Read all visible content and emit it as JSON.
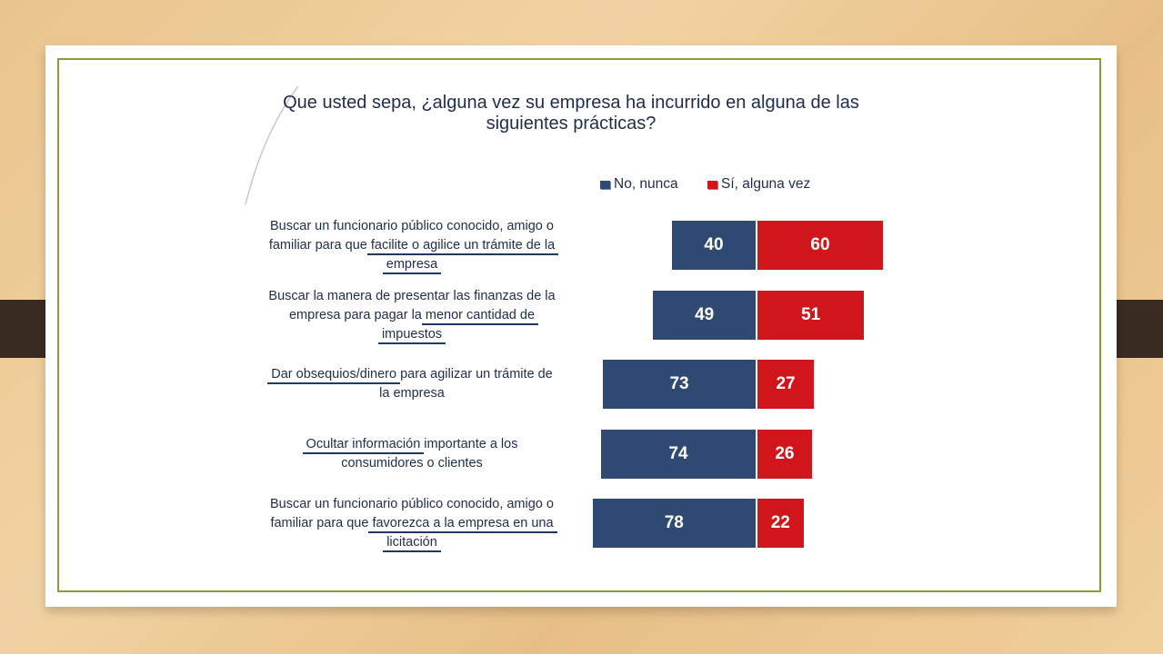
{
  "chart_data": {
    "type": "bar",
    "orientation": "horizontal",
    "stacked": true,
    "title": [
      "Que usted sepa, ¿alguna vez su empresa ha incurrido en alguna de las",
      "siguientes prácticas?"
    ],
    "legend_position": "top-right",
    "series": [
      {
        "name": "No, nunca",
        "color": "#2e4a73",
        "values": [
          40,
          49,
          73,
          74,
          78
        ]
      },
      {
        "name": "Sí, alguna vez",
        "color": "#d0161b",
        "values": [
          60,
          51,
          27,
          26,
          22
        ]
      }
    ],
    "categories": [
      {
        "lines": [
          "Buscar un funcionario público conocido, amigo o",
          "familiar para que facilite o agilice un trámite de la",
          "empresa"
        ]
      },
      {
        "lines": [
          "Buscar la manera de presentar las finanzas de la",
          "empresa para pagar la menor cantidad de",
          "impuestos"
        ]
      },
      {
        "lines": [
          "Dar obsequios/dinero para agilizar un trámite de",
          "la empresa"
        ]
      },
      {
        "lines": [
          "Ocultar información importante a los",
          "consumidores o clientes"
        ]
      },
      {
        "lines": [
          "Buscar un funcionario público conocido, amigo o",
          "familiar para que favorezca a la empresa en una",
          "licitación"
        ]
      }
    ],
    "underlined_phrases": [
      [
        "facilite o agilice un trámite de la",
        "empresa"
      ],
      [
        "menor cantidad de",
        "impuestos"
      ],
      [
        "Dar obsequios/dinero"
      ],
      [
        "Ocultar información"
      ],
      [
        "favorezca a la empresa en una",
        "licitación"
      ]
    ],
    "grid": false
  }
}
